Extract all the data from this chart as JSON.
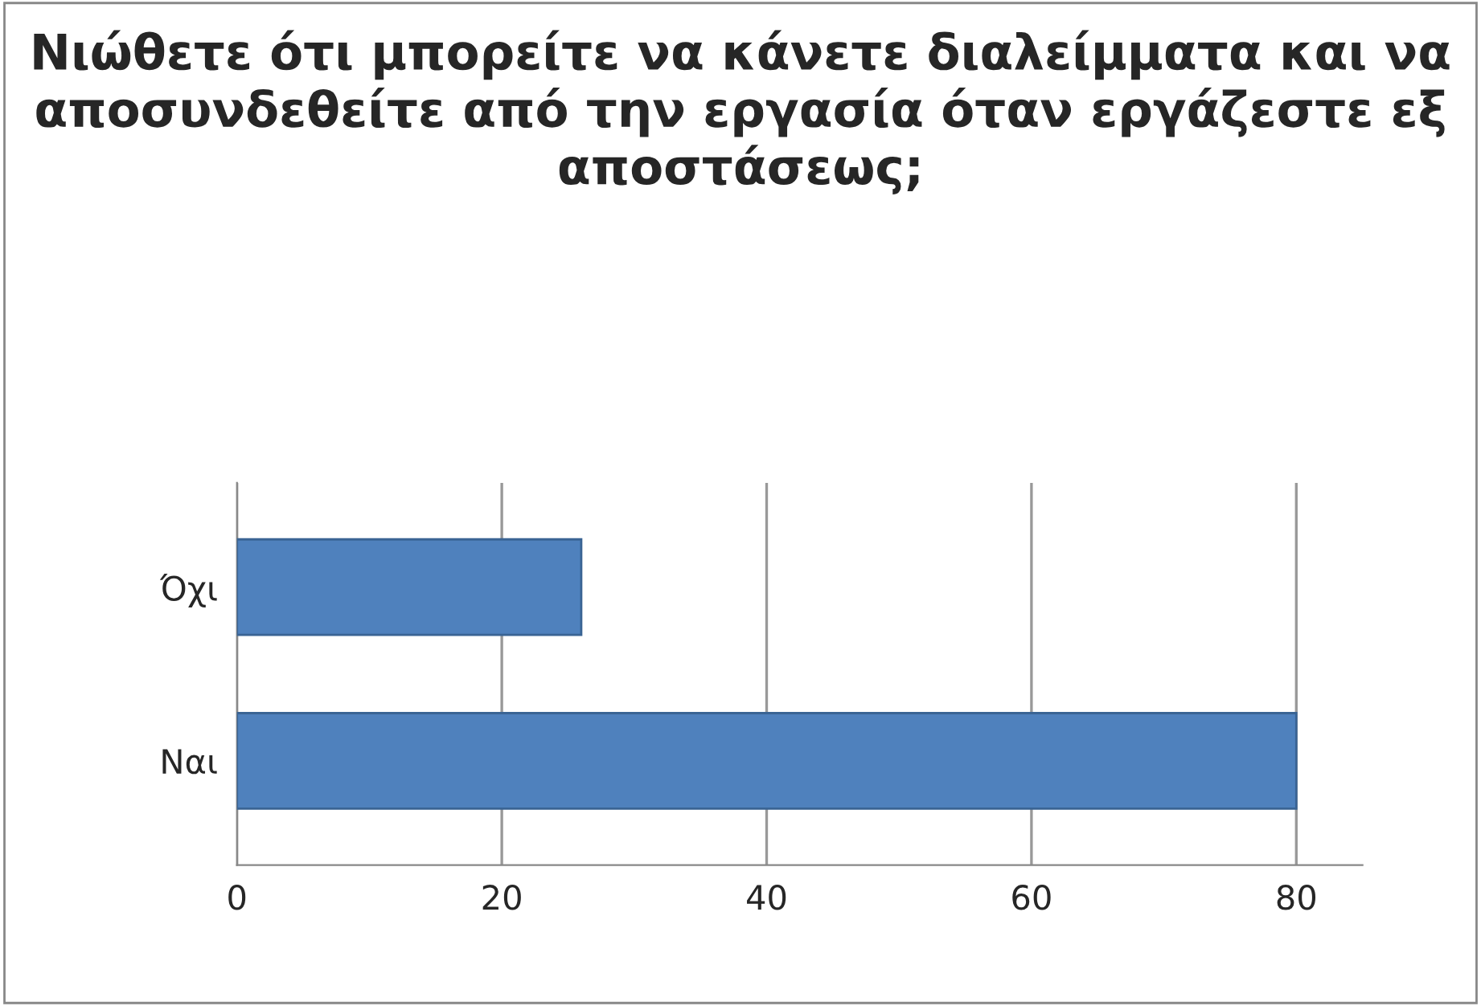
{
  "chart_data": {
    "type": "bar",
    "orientation": "horizontal",
    "title": "Νιώθετε ότι μπορείτε να κάνετε διαλείμματα και να αποσυνδεθείτε από την εργασία όταν εργάζεστε εξ αποστάσεως;",
    "categories": [
      "Όχι",
      "Ναι"
    ],
    "values": [
      26,
      80
    ],
    "color": "#4f81bd",
    "xlim": [
      0,
      85
    ],
    "xticks": [
      0,
      20,
      40,
      60,
      80
    ],
    "grid": "x",
    "legend": false
  }
}
